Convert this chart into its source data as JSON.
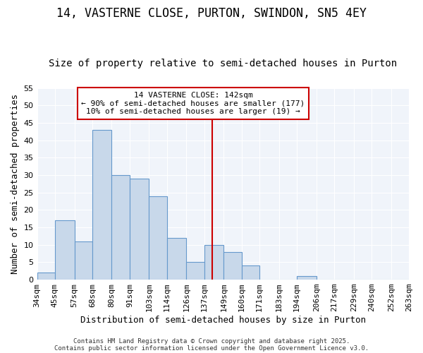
{
  "title1": "14, VASTERNE CLOSE, PURTON, SWINDON, SN5 4EY",
  "title2": "Size of property relative to semi-detached houses in Purton",
  "xlabel": "Distribution of semi-detached houses by size in Purton",
  "ylabel": "Number of semi-detached properties",
  "bar_values": [
    2,
    17,
    11,
    43,
    30,
    29,
    24,
    12,
    5,
    10,
    8,
    4,
    0,
    0,
    1,
    0,
    0,
    0,
    0,
    0
  ],
  "bin_edges": [
    34,
    45,
    57,
    68,
    80,
    91,
    103,
    114,
    126,
    137,
    149,
    160,
    171,
    183,
    194,
    206,
    217,
    229,
    240,
    252,
    263
  ],
  "x_labels": [
    "34sqm",
    "45sqm",
    "57sqm",
    "68sqm",
    "80sqm",
    "91sqm",
    "103sqm",
    "114sqm",
    "126sqm",
    "137sqm",
    "149sqm",
    "160sqm",
    "171sqm",
    "183sqm",
    "194sqm",
    "206sqm",
    "217sqm",
    "229sqm",
    "240sqm",
    "252sqm",
    "263sqm"
  ],
  "bar_color": "#c8d8ea",
  "bar_edge_color": "#6699cc",
  "vline_x": 142,
  "vline_color": "#cc0000",
  "annotation_line1": "14 VASTERNE CLOSE: 142sqm",
  "annotation_line2": "← 90% of semi-detached houses are smaller (177)",
  "annotation_line3": "10% of semi-detached houses are larger (19) →",
  "annotation_box_color": "#cc0000",
  "ylim": [
    0,
    55
  ],
  "yticks": [
    0,
    5,
    10,
    15,
    20,
    25,
    30,
    35,
    40,
    45,
    50,
    55
  ],
  "bg_color": "#ffffff",
  "plot_bg_color": "#f0f4fa",
  "grid_color": "#ffffff",
  "footer1": "Contains HM Land Registry data © Crown copyright and database right 2025.",
  "footer2": "Contains public sector information licensed under the Open Government Licence v3.0.",
  "title1_fontsize": 12,
  "title2_fontsize": 10,
  "axis_label_fontsize": 9,
  "tick_fontsize": 8,
  "annotation_fontsize": 8,
  "footer_fontsize": 6.5
}
